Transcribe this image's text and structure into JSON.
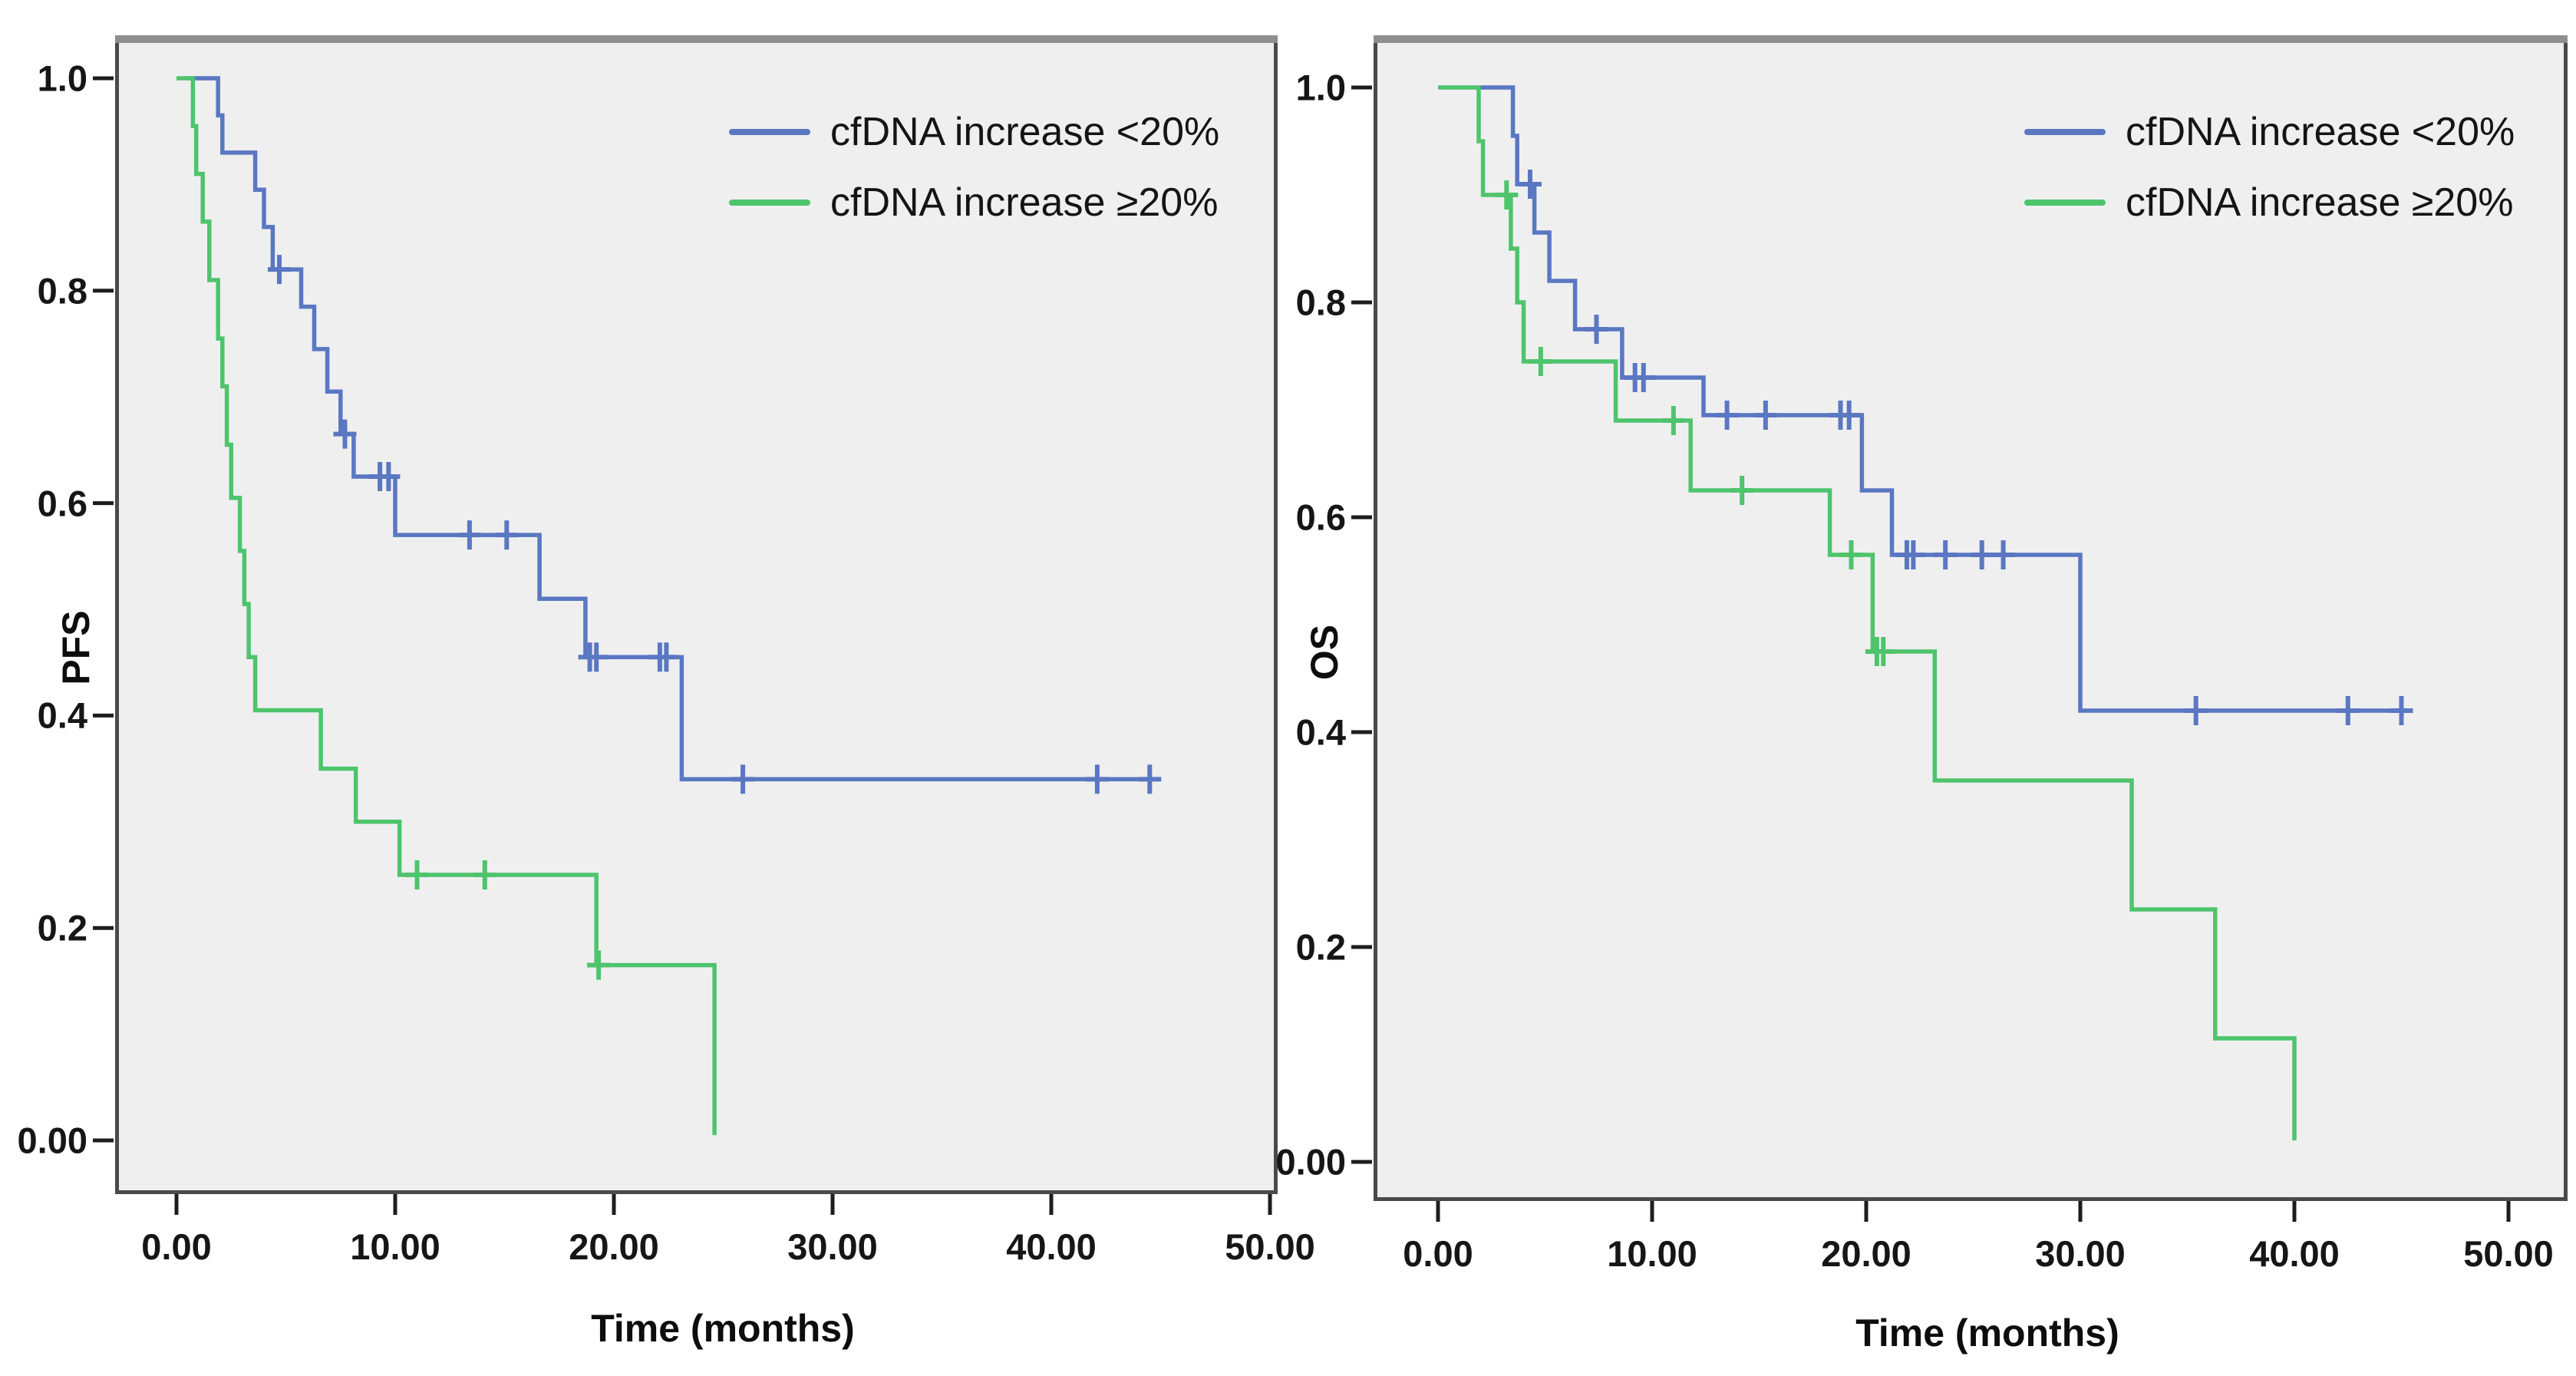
{
  "page": {
    "background": "#ffffff",
    "description": "Two Kaplan-Meier survival panels (PFS and OS) comparing cfDNA increase groups"
  },
  "colors": {
    "blue": "#5a77c2",
    "green": "#4ec46c",
    "axis": "#1d1d1d",
    "text": "#141414",
    "panel_bg": "#efeff0",
    "panel_border": "#4a4a4a",
    "panel_border_top": "#8f8f8f"
  },
  "chart_data": [
    {
      "type": "line",
      "subtype": "kaplan_meier_step",
      "panel": "left",
      "title": "",
      "xlabel": "Time (months)",
      "ylabel": "PFS",
      "xlim": [
        0,
        52
      ],
      "ylim": [
        0,
        1.04
      ],
      "x_tick_values": [
        0,
        10,
        20,
        30,
        40,
        50
      ],
      "x_tick_labels": [
        "0.00",
        "10.00",
        "20.00",
        "30.00",
        "40.00",
        "50.00"
      ],
      "y_tick_values": [
        1.0,
        0.8,
        0.6,
        0.4,
        0.2,
        0.0
      ],
      "y_tick_labels": [
        "1.0",
        "0.8",
        "0.6",
        "0.4",
        "0.2",
        "0.00"
      ],
      "grid": false,
      "legend_position": "top-right",
      "series": [
        {
          "name": "cfDNA increase <20%",
          "key": "cfdna-lt20",
          "color_key": "blue",
          "start_time": 0.5,
          "steps": [
            [
              1.9,
              0.965
            ],
            [
              2.1,
              0.93
            ],
            [
              3.6,
              0.895
            ],
            [
              4.0,
              0.86
            ],
            [
              4.4,
              0.82
            ],
            [
              5.7,
              0.785
            ],
            [
              6.3,
              0.745
            ],
            [
              6.9,
              0.705
            ],
            [
              7.5,
              0.665
            ],
            [
              8.1,
              0.625
            ],
            [
              10.0,
              0.57
            ],
            [
              16.6,
              0.51
            ],
            [
              18.7,
              0.455
            ],
            [
              23.1,
              0.34
            ]
          ],
          "end_time": 44.7,
          "censor_marks": [
            [
              4.7,
              0.82
            ],
            [
              7.7,
              0.665
            ],
            [
              9.3,
              0.625
            ],
            [
              9.7,
              0.625
            ],
            [
              13.4,
              0.57
            ],
            [
              15.1,
              0.57
            ],
            [
              18.9,
              0.455
            ],
            [
              19.2,
              0.455
            ],
            [
              22.1,
              0.455
            ],
            [
              22.4,
              0.455
            ],
            [
              25.9,
              0.34
            ],
            [
              42.1,
              0.34
            ],
            [
              44.5,
              0.34
            ]
          ]
        },
        {
          "name": "cfDNA increase ≥20%",
          "key": "cfdna-ge20",
          "color_key": "green",
          "start_time": 0,
          "steps": [
            [
              0.75,
              0.955
            ],
            [
              0.9,
              0.91
            ],
            [
              1.2,
              0.865
            ],
            [
              1.5,
              0.81
            ],
            [
              1.9,
              0.755
            ],
            [
              2.1,
              0.71
            ],
            [
              2.3,
              0.655
            ],
            [
              2.5,
              0.605
            ],
            [
              2.9,
              0.555
            ],
            [
              3.1,
              0.505
            ],
            [
              3.3,
              0.455
            ],
            [
              3.6,
              0.405
            ],
            [
              6.6,
              0.35
            ],
            [
              8.2,
              0.3
            ],
            [
              10.2,
              0.25
            ],
            [
              19.2,
              0.165
            ],
            [
              24.6,
              0.005
            ]
          ],
          "end_time": 24.6,
          "censor_marks": [
            [
              11.0,
              0.25
            ],
            [
              14.1,
              0.25
            ],
            [
              19.3,
              0.165
            ]
          ]
        }
      ]
    },
    {
      "type": "line",
      "subtype": "kaplan_meier_step",
      "panel": "right",
      "title": "",
      "xlabel": "Time (months)",
      "ylabel": "OS",
      "xlim": [
        0,
        52
      ],
      "ylim": [
        0,
        1.04
      ],
      "x_tick_values": [
        0,
        10,
        20,
        30,
        40,
        50
      ],
      "x_tick_labels": [
        "0.00",
        "10.00",
        "20.00",
        "30.00",
        "40.00",
        "50.00"
      ],
      "y_tick_values": [
        1.0,
        0.8,
        0.6,
        0.4,
        0.2,
        0.0
      ],
      "y_tick_labels": [
        "1.0",
        "0.8",
        "0.6",
        "0.4",
        "0.2",
        "0.00"
      ],
      "grid": false,
      "legend_position": "top-right",
      "series": [
        {
          "name": "cfDNA increase <20%",
          "key": "cfdna-lt20",
          "color_key": "blue",
          "start_time": 1.9,
          "steps": [
            [
              3.5,
              0.955
            ],
            [
              3.7,
              0.91
            ],
            [
              4.5,
              0.865
            ],
            [
              5.2,
              0.82
            ],
            [
              6.4,
              0.775
            ],
            [
              8.6,
              0.73
            ],
            [
              12.4,
              0.695
            ],
            [
              19.8,
              0.625
            ],
            [
              21.2,
              0.565
            ],
            [
              30.0,
              0.42
            ]
          ],
          "end_time": 45.2,
          "censor_marks": [
            [
              4.3,
              0.91
            ],
            [
              7.4,
              0.775
            ],
            [
              9.2,
              0.73
            ],
            [
              9.6,
              0.73
            ],
            [
              13.5,
              0.695
            ],
            [
              15.3,
              0.695
            ],
            [
              18.8,
              0.695
            ],
            [
              19.2,
              0.695
            ],
            [
              21.9,
              0.565
            ],
            [
              22.2,
              0.565
            ],
            [
              23.7,
              0.565
            ],
            [
              25.4,
              0.565
            ],
            [
              26.4,
              0.565
            ],
            [
              35.4,
              0.42
            ],
            [
              42.5,
              0.42
            ],
            [
              45.0,
              0.42
            ]
          ]
        },
        {
          "name": "cfDNA increase ≥20%",
          "key": "cfdna-ge20",
          "color_key": "green",
          "start_time": 0,
          "steps": [
            [
              1.9,
              0.95
            ],
            [
              2.1,
              0.9
            ],
            [
              3.4,
              0.85
            ],
            [
              3.7,
              0.8
            ],
            [
              4.0,
              0.745
            ],
            [
              8.3,
              0.69
            ],
            [
              11.8,
              0.625
            ],
            [
              18.3,
              0.565
            ],
            [
              20.3,
              0.475
            ],
            [
              23.2,
              0.355
            ],
            [
              32.4,
              0.235
            ],
            [
              36.3,
              0.115
            ],
            [
              40.0,
              0.02
            ]
          ],
          "end_time": 40.0,
          "censor_marks": [
            [
              3.2,
              0.9
            ],
            [
              4.8,
              0.745
            ],
            [
              11.0,
              0.69
            ],
            [
              14.2,
              0.625
            ],
            [
              19.3,
              0.565
            ],
            [
              20.5,
              0.475
            ],
            [
              20.8,
              0.475
            ]
          ]
        }
      ]
    }
  ]
}
